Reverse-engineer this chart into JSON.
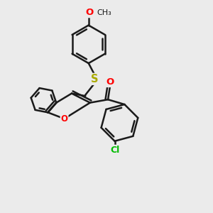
{
  "background_color": "#ebebeb",
  "bond_color": "#1a1a1a",
  "bond_width": 1.8,
  "atom_colors": {
    "O": "#ff0000",
    "S": "#aaaa00",
    "Cl": "#00bb00",
    "C": "#1a1a1a"
  },
  "font_size": 8.5,
  "fig_size": [
    3.0,
    3.0
  ],
  "dpi": 100,
  "xlim": [
    0,
    10
  ],
  "ylim": [
    0,
    10
  ]
}
